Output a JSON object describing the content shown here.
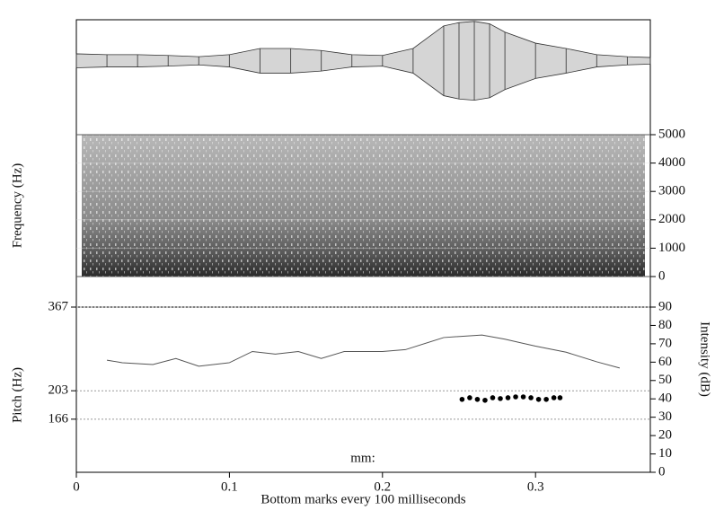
{
  "chart_data": [
    {
      "type": "waveform",
      "xlim": [
        0,
        0.375
      ],
      "ylim": [
        -1.8,
        1
      ],
      "color": "#333333",
      "x": [
        0,
        0.02,
        0.04,
        0.06,
        0.08,
        0.1,
        0.12,
        0.14,
        0.16,
        0.18,
        0.2,
        0.22,
        0.24,
        0.25,
        0.26,
        0.27,
        0.28,
        0.3,
        0.32,
        0.34,
        0.36,
        0.375
      ],
      "values": [
        0.17,
        0.15,
        0.15,
        0.13,
        0.1,
        0.15,
        0.3,
        0.3,
        0.25,
        0.15,
        0.13,
        0.3,
        0.85,
        0.93,
        0.96,
        0.9,
        0.7,
        0.43,
        0.3,
        0.15,
        0.1,
        0.08
      ]
    },
    {
      "type": "spectrogram",
      "ylabel": "Frequency (Hz)",
      "xlim": [
        0,
        0.375
      ],
      "ylim": [
        0,
        5000
      ],
      "yticks": [
        0,
        1000,
        2000,
        3000,
        4000,
        5000
      ]
    },
    {
      "type": "pitch-intensity",
      "xlabel": "Bottom marks every 100 milliseconds",
      "ylabel": "Pitch (Hz)",
      "y2label": "Intensity (dB)",
      "annotation": "mm:",
      "xlim": [
        0,
        0.375
      ],
      "xticks": [
        0,
        0.1,
        0.2,
        0.3
      ],
      "ylim": [
        114,
        367
      ],
      "log_y": true,
      "yticks": [
        166,
        203,
        367
      ],
      "grid": true,
      "y2lim": [
        0,
        90
      ],
      "y2ticks": [
        0,
        10,
        20,
        30,
        40,
        50,
        60,
        70,
        80,
        90
      ],
      "series": [
        {
          "marker": "dot",
          "color": "#000000",
          "x": [
            0.252,
            0.257,
            0.262,
            0.267,
            0.272,
            0.277,
            0.282,
            0.287,
            0.292,
            0.297,
            0.302,
            0.307,
            0.312,
            0.316
          ],
          "values": [
            191,
            193.2,
            191,
            189.8,
            193.2,
            192.1,
            193.2,
            194.4,
            194.4,
            193.2,
            191,
            191,
            193.2,
            193.2
          ]
        },
        {
          "axis": "y2",
          "color": "#555555",
          "x": [
            0.02,
            0.03,
            0.05,
            0.065,
            0.08,
            0.1,
            0.115,
            0.13,
            0.145,
            0.16,
            0.175,
            0.2,
            0.215,
            0.24,
            0.265,
            0.28,
            0.3,
            0.32,
            0.34,
            0.355
          ],
          "values": [
            61.1,
            59.7,
            58.7,
            62,
            57.8,
            59.7,
            65.8,
            64.4,
            65.8,
            62,
            65.8,
            65.8,
            66.8,
            73.4,
            74.8,
            72.5,
            68.7,
            65.4,
            60.2,
            56.8
          ]
        }
      ]
    }
  ]
}
